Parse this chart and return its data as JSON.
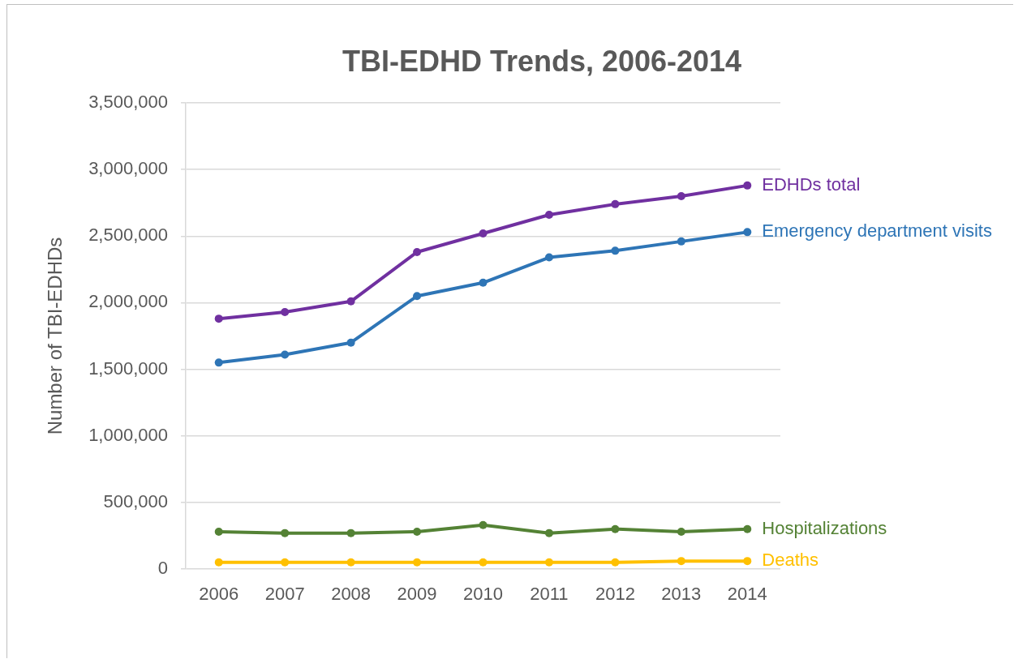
{
  "chart_data": {
    "type": "line",
    "title": "TBI-EDHD Trends, 2006-2014",
    "ylabel": "Number of TBI-EDHDs",
    "categories": [
      "2006",
      "2007",
      "2008",
      "2009",
      "2010",
      "2011",
      "2012",
      "2013",
      "2014"
    ],
    "series": [
      {
        "name": "EDHDs total",
        "color": "#7030a0",
        "values": [
          1880000,
          1930000,
          2010000,
          2380000,
          2520000,
          2660000,
          2740000,
          2800000,
          2880000
        ]
      },
      {
        "name": "Emergency department visits",
        "color": "#2e75b6",
        "values": [
          1550000,
          1610000,
          1700000,
          2050000,
          2150000,
          2340000,
          2390000,
          2460000,
          2530000
        ]
      },
      {
        "name": "Hospitalizations",
        "color": "#548235",
        "values": [
          280000,
          270000,
          270000,
          280000,
          330000,
          270000,
          300000,
          280000,
          300000
        ]
      },
      {
        "name": "Deaths",
        "color": "#ffc000",
        "values": [
          50000,
          50000,
          50000,
          50000,
          50000,
          50000,
          50000,
          60000,
          60000
        ]
      }
    ],
    "ylim": [
      0,
      3500000
    ],
    "yticks": [
      0,
      {
        "value": 500000,
        "label": "500,000"
      },
      {
        "value": 1000000,
        "label": "1,000,000"
      },
      {
        "value": 1500000,
        "label": "1,500,000"
      },
      {
        "value": 2000000,
        "label": "2,000,000"
      },
      {
        "value": 2500000,
        "label": "2,500,000"
      },
      {
        "value": 3000000,
        "label": "3,000,000"
      },
      {
        "value": 3500000,
        "label": "3,500,000"
      }
    ],
    "grid": "y",
    "legend": false,
    "marker": "circle",
    "line_style": "solid"
  }
}
